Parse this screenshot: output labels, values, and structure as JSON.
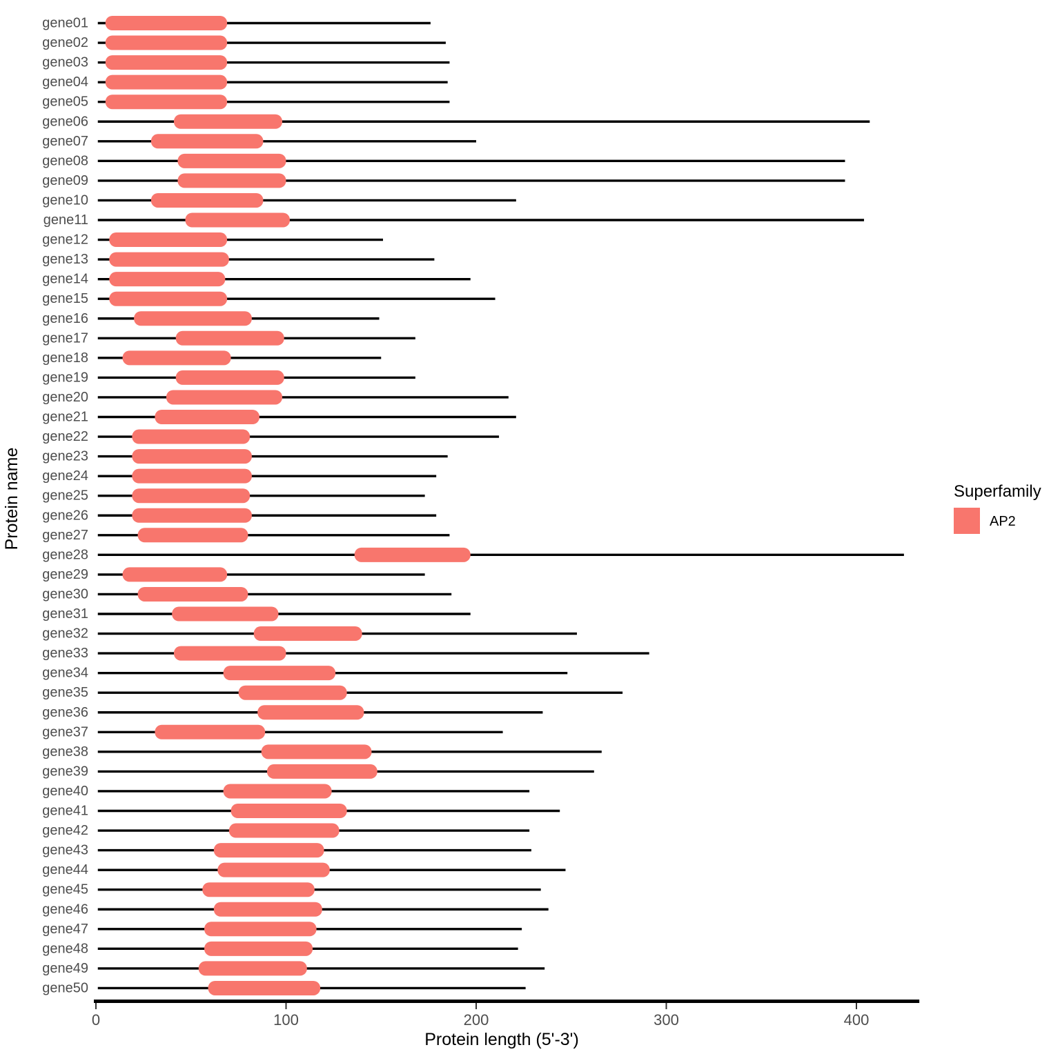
{
  "axis": {
    "x_label": "Protein length (5'-3')",
    "y_label": "Protein name",
    "x_ticks": [
      0,
      100,
      200,
      300,
      400
    ],
    "x_range": [
      0,
      432
    ]
  },
  "legend": {
    "title": "Superfamily",
    "items": [
      {
        "label": "AP2",
        "color": "#F8766D"
      }
    ]
  },
  "colors": {
    "domain_fill": "#F8766D",
    "chain_line": "#000000",
    "axis_line": "#000000",
    "tick_text": "#4d4d4d"
  },
  "chart_data": {
    "type": "bar",
    "subtype": "protein-domain-structure",
    "title": "",
    "xlabel": "Protein length (5'-3')",
    "ylabel": "Protein name",
    "xlim": [
      0,
      432
    ],
    "grid": false,
    "legend_position": "right",
    "legend_title": "Superfamily",
    "domain_superfamily": "AP2",
    "categories": [
      "gene01",
      "gene02",
      "gene03",
      "gene04",
      "gene05",
      "gene06",
      "gene07",
      "gene08",
      "gene09",
      "gene10",
      "gene11",
      "gene12",
      "gene13",
      "gene14",
      "gene15",
      "gene16",
      "gene17",
      "gene18",
      "gene19",
      "gene20",
      "gene21",
      "gene22",
      "gene23",
      "gene24",
      "gene25",
      "gene26",
      "gene27",
      "gene28",
      "gene29",
      "gene30",
      "gene31",
      "gene32",
      "gene33",
      "gene34",
      "gene35",
      "gene36",
      "gene37",
      "gene38",
      "gene39",
      "gene40",
      "gene41",
      "gene42",
      "gene43",
      "gene44",
      "gene45",
      "gene46",
      "gene47",
      "gene48",
      "gene49",
      "gene50"
    ],
    "genes": [
      {
        "name": "gene01",
        "length": 176,
        "domain_begin": 5,
        "domain_end": 69,
        "superfamily": "AP2"
      },
      {
        "name": "gene02",
        "length": 184,
        "domain_begin": 5,
        "domain_end": 69,
        "superfamily": "AP2"
      },
      {
        "name": "gene03",
        "length": 186,
        "domain_begin": 5,
        "domain_end": 69,
        "superfamily": "AP2"
      },
      {
        "name": "gene04",
        "length": 185,
        "domain_begin": 5,
        "domain_end": 69,
        "superfamily": "AP2"
      },
      {
        "name": "gene05",
        "length": 186,
        "domain_begin": 5,
        "domain_end": 69,
        "superfamily": "AP2"
      },
      {
        "name": "gene06",
        "length": 407,
        "domain_begin": 41,
        "domain_end": 98,
        "superfamily": "AP2"
      },
      {
        "name": "gene07",
        "length": 200,
        "domain_begin": 29,
        "domain_end": 88,
        "superfamily": "AP2"
      },
      {
        "name": "gene08",
        "length": 394,
        "domain_begin": 43,
        "domain_end": 100,
        "superfamily": "AP2"
      },
      {
        "name": "gene09",
        "length": 394,
        "domain_begin": 43,
        "domain_end": 100,
        "superfamily": "AP2"
      },
      {
        "name": "gene10",
        "length": 221,
        "domain_begin": 29,
        "domain_end": 88,
        "superfamily": "AP2"
      },
      {
        "name": "gene11",
        "length": 404,
        "domain_begin": 47,
        "domain_end": 102,
        "superfamily": "AP2"
      },
      {
        "name": "gene12",
        "length": 151,
        "domain_begin": 7,
        "domain_end": 69,
        "superfamily": "AP2"
      },
      {
        "name": "gene13",
        "length": 178,
        "domain_begin": 7,
        "domain_end": 70,
        "superfamily": "AP2"
      },
      {
        "name": "gene14",
        "length": 197,
        "domain_begin": 7,
        "domain_end": 68,
        "superfamily": "AP2"
      },
      {
        "name": "gene15",
        "length": 210,
        "domain_begin": 7,
        "domain_end": 69,
        "superfamily": "AP2"
      },
      {
        "name": "gene16",
        "length": 149,
        "domain_begin": 20,
        "domain_end": 82,
        "superfamily": "AP2"
      },
      {
        "name": "gene17",
        "length": 168,
        "domain_begin": 42,
        "domain_end": 99,
        "superfamily": "AP2"
      },
      {
        "name": "gene18",
        "length": 150,
        "domain_begin": 14,
        "domain_end": 71,
        "superfamily": "AP2"
      },
      {
        "name": "gene19",
        "length": 168,
        "domain_begin": 42,
        "domain_end": 99,
        "superfamily": "AP2"
      },
      {
        "name": "gene20",
        "length": 217,
        "domain_begin": 37,
        "domain_end": 98,
        "superfamily": "AP2"
      },
      {
        "name": "gene21",
        "length": 221,
        "domain_begin": 31,
        "domain_end": 86,
        "superfamily": "AP2"
      },
      {
        "name": "gene22",
        "length": 212,
        "domain_begin": 19,
        "domain_end": 81,
        "superfamily": "AP2"
      },
      {
        "name": "gene23",
        "length": 185,
        "domain_begin": 19,
        "domain_end": 82,
        "superfamily": "AP2"
      },
      {
        "name": "gene24",
        "length": 179,
        "domain_begin": 19,
        "domain_end": 82,
        "superfamily": "AP2"
      },
      {
        "name": "gene25",
        "length": 173,
        "domain_begin": 19,
        "domain_end": 81,
        "superfamily": "AP2"
      },
      {
        "name": "gene26",
        "length": 179,
        "domain_begin": 19,
        "domain_end": 82,
        "superfamily": "AP2"
      },
      {
        "name": "gene27",
        "length": 186,
        "domain_begin": 22,
        "domain_end": 80,
        "superfamily": "AP2"
      },
      {
        "name": "gene28",
        "length": 425,
        "domain_begin": 136,
        "domain_end": 197,
        "superfamily": "AP2"
      },
      {
        "name": "gene29",
        "length": 173,
        "domain_begin": 14,
        "domain_end": 69,
        "superfamily": "AP2"
      },
      {
        "name": "gene30",
        "length": 187,
        "domain_begin": 22,
        "domain_end": 80,
        "superfamily": "AP2"
      },
      {
        "name": "gene31",
        "length": 197,
        "domain_begin": 40,
        "domain_end": 96,
        "superfamily": "AP2"
      },
      {
        "name": "gene32",
        "length": 253,
        "domain_begin": 83,
        "domain_end": 140,
        "superfamily": "AP2"
      },
      {
        "name": "gene33",
        "length": 291,
        "domain_begin": 41,
        "domain_end": 100,
        "superfamily": "AP2"
      },
      {
        "name": "gene34",
        "length": 248,
        "domain_begin": 67,
        "domain_end": 126,
        "superfamily": "AP2"
      },
      {
        "name": "gene35",
        "length": 277,
        "domain_begin": 75,
        "domain_end": 132,
        "superfamily": "AP2"
      },
      {
        "name": "gene36",
        "length": 235,
        "domain_begin": 85,
        "domain_end": 141,
        "superfamily": "AP2"
      },
      {
        "name": "gene37",
        "length": 214,
        "domain_begin": 31,
        "domain_end": 89,
        "superfamily": "AP2"
      },
      {
        "name": "gene38",
        "length": 266,
        "domain_begin": 87,
        "domain_end": 145,
        "superfamily": "AP2"
      },
      {
        "name": "gene39",
        "length": 262,
        "domain_begin": 90,
        "domain_end": 148,
        "superfamily": "AP2"
      },
      {
        "name": "gene40",
        "length": 228,
        "domain_begin": 67,
        "domain_end": 124,
        "superfamily": "AP2"
      },
      {
        "name": "gene41",
        "length": 244,
        "domain_begin": 71,
        "domain_end": 132,
        "superfamily": "AP2"
      },
      {
        "name": "gene42",
        "length": 228,
        "domain_begin": 70,
        "domain_end": 128,
        "superfamily": "AP2"
      },
      {
        "name": "gene43",
        "length": 229,
        "domain_begin": 62,
        "domain_end": 120,
        "superfamily": "AP2"
      },
      {
        "name": "gene44",
        "length": 247,
        "domain_begin": 64,
        "domain_end": 123,
        "superfamily": "AP2"
      },
      {
        "name": "gene45",
        "length": 234,
        "domain_begin": 56,
        "domain_end": 115,
        "superfamily": "AP2"
      },
      {
        "name": "gene46",
        "length": 238,
        "domain_begin": 62,
        "domain_end": 119,
        "superfamily": "AP2"
      },
      {
        "name": "gene47",
        "length": 224,
        "domain_begin": 57,
        "domain_end": 116,
        "superfamily": "AP2"
      },
      {
        "name": "gene48",
        "length": 222,
        "domain_begin": 57,
        "domain_end": 114,
        "superfamily": "AP2"
      },
      {
        "name": "gene49",
        "length": 236,
        "domain_begin": 54,
        "domain_end": 111,
        "superfamily": "AP2"
      },
      {
        "name": "gene50",
        "length": 226,
        "domain_begin": 59,
        "domain_end": 118,
        "superfamily": "AP2"
      }
    ]
  }
}
